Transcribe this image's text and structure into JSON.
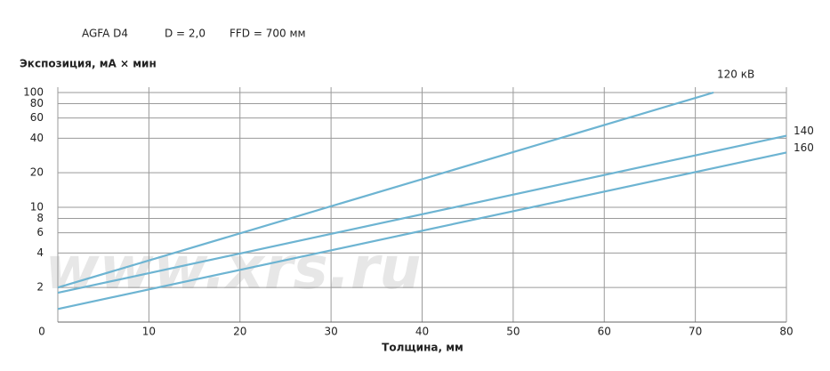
{
  "chart_data": {
    "type": "line",
    "annotations": [
      "AGFA D4",
      "D = 2,0",
      "FFD = 700 мм"
    ],
    "watermark": "www.xrs.ru",
    "y_label": "Экспозиция, мА × мин",
    "x_label": "Толщина, мм",
    "x": [
      0,
      80
    ],
    "series": [
      {
        "name": "120 кВ",
        "color": "#6db4d2",
        "x": [
          0,
          72
        ],
        "values": [
          2,
          100
        ]
      },
      {
        "name": "140",
        "color": "#6db4d2",
        "x": [
          0,
          80
        ],
        "values": [
          1.8,
          42
        ]
      },
      {
        "name": "160",
        "color": "#6db4d2",
        "x": [
          0,
          80
        ],
        "values": [
          1.3,
          30
        ]
      }
    ],
    "xlim": [
      0,
      80
    ],
    "xticks": [
      0,
      10,
      20,
      30,
      40,
      50,
      60,
      70,
      80
    ],
    "ylim": [
      1,
      100
    ],
    "yticks": [
      2,
      4,
      6,
      8,
      10,
      20,
      40,
      60,
      80,
      100
    ],
    "log_y": true,
    "grid": true
  }
}
